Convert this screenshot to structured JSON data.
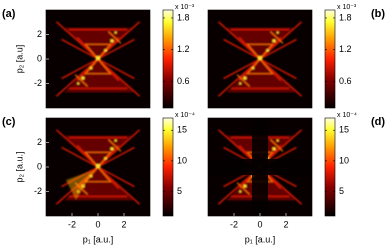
{
  "chart_data": [
    {
      "type": "heatmap",
      "panel_label": "(a)",
      "y_label": "p₂ [a.u]",
      "ylim": [
        -4,
        4
      ],
      "yticks": [
        2,
        0,
        -2
      ],
      "colorbar": {
        "exponent_label": "x 10⁻³",
        "clim": [
          0.1,
          1.95
        ],
        "ticks": [
          0.6,
          1.2,
          1.8
        ]
      }
    },
    {
      "type": "heatmap",
      "panel_label": "(b)",
      "colorbar": {
        "exponent_label": "x 10⁻³",
        "clim": [
          0.1,
          1.95
        ],
        "ticks": [
          0.6,
          1.2,
          1.8
        ]
      }
    },
    {
      "type": "heatmap",
      "panel_label": "(c)",
      "y_label": "p₂ [a.u.]",
      "x_label": "p₁ [a.u.]",
      "xlim": [
        -4,
        4
      ],
      "xticks": [
        -2,
        0,
        2
      ],
      "ylim": [
        -4,
        4
      ],
      "yticks": [
        2,
        0,
        -2
      ],
      "colorbar": {
        "exponent_label": "x 10⁻⁴",
        "clim": [
          1,
          17
        ],
        "ticks": [
          5,
          10,
          15
        ]
      }
    },
    {
      "type": "heatmap",
      "panel_label": "(d)",
      "x_label": "p₁ [a.u.]",
      "xlim": [
        -4,
        4
      ],
      "xticks": [
        -2,
        0,
        2
      ],
      "colorbar": {
        "exponent_label": "x 10⁻⁴",
        "clim": [
          1,
          17
        ],
        "ticks": [
          5,
          10,
          15
        ]
      }
    }
  ]
}
